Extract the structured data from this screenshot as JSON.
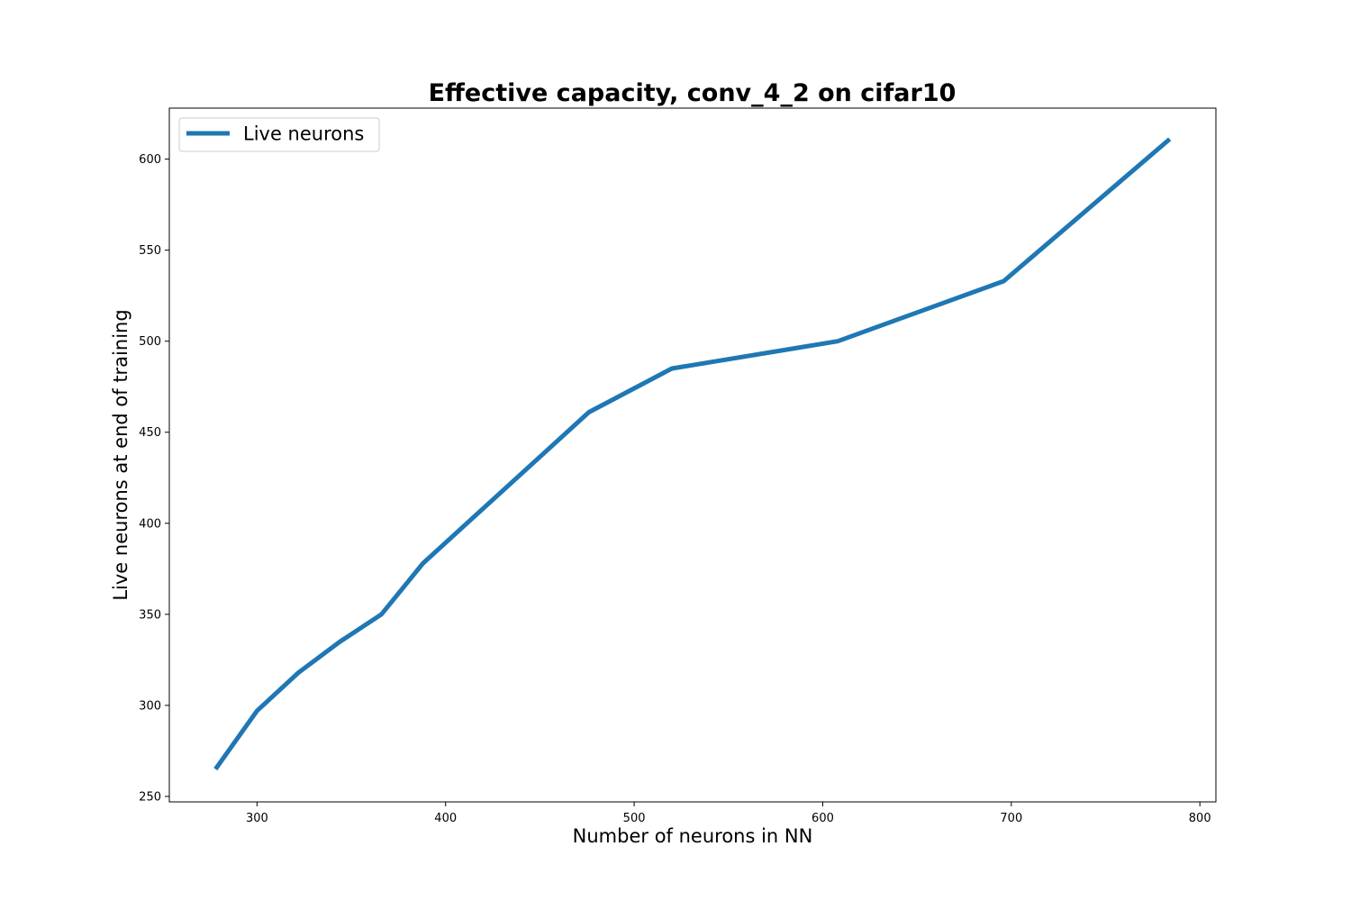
{
  "chart_data": {
    "type": "line",
    "title": "Effective capacity, conv_4_2 on cifar10",
    "xlabel": "Number of neurons in NN",
    "ylabel": "Live neurons at end of training",
    "xlim": [
      253.5,
      808.5
    ],
    "ylim": [
      247,
      628
    ],
    "xticks": [
      300,
      400,
      500,
      600,
      700,
      800
    ],
    "yticks": [
      250,
      300,
      350,
      400,
      450,
      500,
      550,
      600
    ],
    "grid": false,
    "legend_position": "upper left",
    "series": [
      {
        "name": "Live neurons",
        "color": "#1f77b4",
        "x": [
          278,
          300,
          322,
          344,
          366,
          388,
          476,
          520,
          608,
          696,
          784
        ],
        "y": [
          265,
          297,
          318,
          335,
          350,
          378,
          461,
          485,
          500,
          533,
          611
        ]
      }
    ]
  }
}
